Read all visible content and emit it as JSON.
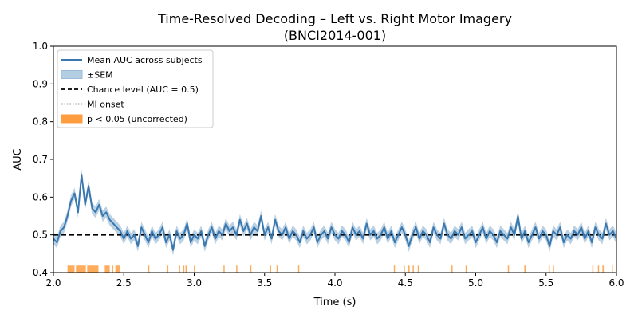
{
  "chart_data": {
    "type": "line",
    "title": "Time-Resolved Decoding – Left vs. Right Motor Imagery",
    "subtitle": "(BNCI2014-001)",
    "xlabel": "Time (s)",
    "ylabel": "AUC",
    "xlim": [
      2.0,
      6.0
    ],
    "ylim": [
      0.4,
      1.0
    ],
    "xticks": [
      "2.0",
      "2.5",
      "3.0",
      "3.5",
      "4.0",
      "4.5",
      "5.0",
      "5.5",
      "6.0"
    ],
    "yticks": [
      "0.4",
      "0.5",
      "0.6",
      "0.7",
      "0.8",
      "0.9",
      "1.0"
    ],
    "grid": false,
    "legend_placement": "top-left",
    "legend": [
      {
        "label": "Mean AUC across subjects",
        "kind": "line",
        "color": "#3a78b0"
      },
      {
        "label": "±SEM",
        "kind": "patch",
        "color": "#b3cde3"
      },
      {
        "label": "Chance level (AUC = 0.5)",
        "kind": "dashed",
        "color": "#000000"
      },
      {
        "label": "MI onset",
        "kind": "dotted",
        "color": "#808080"
      },
      {
        "label": "p < 0.05 (uncorrected)",
        "kind": "patch",
        "color": "#ff9c3f"
      }
    ],
    "chance_level": 0.5,
    "x_start": 2.0,
    "x_step": 0.025,
    "mean_auc": [
      0.49,
      0.48,
      0.51,
      0.52,
      0.55,
      0.59,
      0.61,
      0.56,
      0.66,
      0.58,
      0.63,
      0.57,
      0.56,
      0.58,
      0.55,
      0.56,
      0.54,
      0.53,
      0.52,
      0.51,
      0.49,
      0.51,
      0.49,
      0.5,
      0.47,
      0.52,
      0.5,
      0.48,
      0.51,
      0.49,
      0.5,
      0.52,
      0.48,
      0.5,
      0.46,
      0.51,
      0.49,
      0.5,
      0.53,
      0.48,
      0.5,
      0.49,
      0.51,
      0.47,
      0.5,
      0.52,
      0.49,
      0.51,
      0.5,
      0.53,
      0.51,
      0.52,
      0.5,
      0.54,
      0.51,
      0.53,
      0.5,
      0.52,
      0.51,
      0.55,
      0.5,
      0.52,
      0.49,
      0.54,
      0.51,
      0.5,
      0.52,
      0.49,
      0.51,
      0.5,
      0.48,
      0.51,
      0.49,
      0.5,
      0.52,
      0.48,
      0.5,
      0.51,
      0.49,
      0.52,
      0.5,
      0.49,
      0.51,
      0.5,
      0.48,
      0.52,
      0.5,
      0.51,
      0.49,
      0.53,
      0.5,
      0.51,
      0.49,
      0.5,
      0.52,
      0.49,
      0.51,
      0.48,
      0.5,
      0.52,
      0.5,
      0.47,
      0.5,
      0.52,
      0.49,
      0.51,
      0.5,
      0.48,
      0.52,
      0.5,
      0.49,
      0.53,
      0.5,
      0.49,
      0.51,
      0.5,
      0.52,
      0.49,
      0.5,
      0.51,
      0.48,
      0.5,
      0.52,
      0.49,
      0.51,
      0.5,
      0.48,
      0.51,
      0.5,
      0.49,
      0.52,
      0.5,
      0.55,
      0.49,
      0.51,
      0.48,
      0.5,
      0.52,
      0.49,
      0.51,
      0.5,
      0.47,
      0.51,
      0.5,
      0.52,
      0.48,
      0.5,
      0.49,
      0.51,
      0.5,
      0.52,
      0.49,
      0.51,
      0.48,
      0.52,
      0.5,
      0.49,
      0.53,
      0.5,
      0.51,
      0.49
    ],
    "sem": 0.015,
    "significant_intervals": [
      [
        2.1,
        2.15
      ],
      [
        2.16,
        2.23
      ],
      [
        2.24,
        2.32
      ],
      [
        2.365,
        2.4
      ],
      [
        2.415,
        2.425
      ],
      [
        2.44,
        2.47
      ],
      [
        2.673,
        2.678
      ],
      [
        2.808,
        2.813
      ],
      [
        2.89,
        2.9
      ],
      [
        2.92,
        2.93
      ],
      [
        2.938,
        2.943
      ],
      [
        2.998,
        3.003
      ],
      [
        3.208,
        3.213
      ],
      [
        3.298,
        3.303
      ],
      [
        3.398,
        3.405
      ],
      [
        3.538,
        3.543
      ],
      [
        3.585,
        3.592
      ],
      [
        3.738,
        3.743
      ],
      [
        4.418,
        4.423
      ],
      [
        4.488,
        4.493
      ],
      [
        4.52,
        4.53
      ],
      [
        4.552,
        4.559
      ],
      [
        4.588,
        4.593
      ],
      [
        4.826,
        4.836
      ],
      [
        4.928,
        4.933
      ],
      [
        5.228,
        5.233
      ],
      [
        5.345,
        5.355
      ],
      [
        5.518,
        5.523
      ],
      [
        5.548,
        5.556
      ],
      [
        5.828,
        5.833
      ],
      [
        5.868,
        5.873
      ],
      [
        5.9,
        5.91
      ],
      [
        5.966,
        5.974
      ]
    ]
  }
}
